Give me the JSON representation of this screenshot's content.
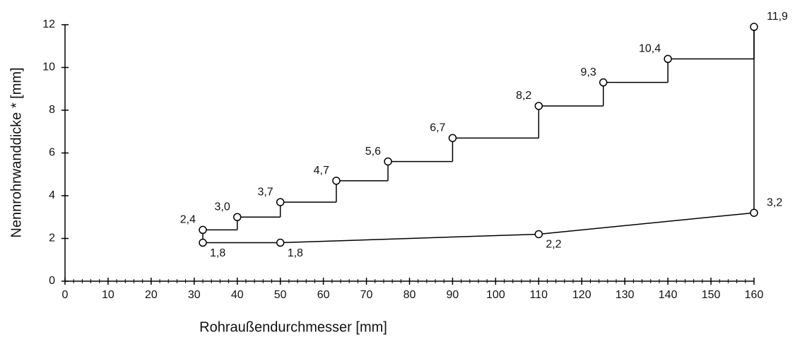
{
  "chart_data": {
    "type": "step-line",
    "xlabel": "Rohraußendurchmesser [mm]",
    "ylabel": "Nennrohrwanddicke * [mm]",
    "xlim": [
      0,
      160
    ],
    "xticks": [
      0,
      10,
      20,
      30,
      40,
      50,
      60,
      70,
      80,
      90,
      100,
      110,
      120,
      130,
      140,
      150,
      160
    ],
    "ylim": [
      0,
      12
    ],
    "yticks": [
      0,
      2,
      4,
      6,
      8,
      10,
      12
    ],
    "series": [
      {
        "color": "#000000",
        "step": true,
        "x": [
          32,
          40,
          50,
          63,
          75,
          90,
          110,
          125,
          140,
          160
        ],
        "values": [
          2.4,
          3.0,
          3.7,
          4.7,
          5.6,
          6.7,
          8.2,
          9.3,
          10.4,
          11.9
        ],
        "value_labels": [
          "2,4",
          "3,0",
          "3,7",
          "4,7",
          "5,6",
          "6,7",
          "8,2",
          "9,3",
          "10,4",
          "11,9"
        ]
      },
      {
        "color": "#000000",
        "step": false,
        "x": [
          32,
          50,
          110,
          160
        ],
        "values": [
          1.8,
          1.8,
          2.2,
          3.2
        ],
        "value_labels": [
          "1,8",
          "1,8",
          "2,2",
          "3,2"
        ]
      }
    ]
  }
}
